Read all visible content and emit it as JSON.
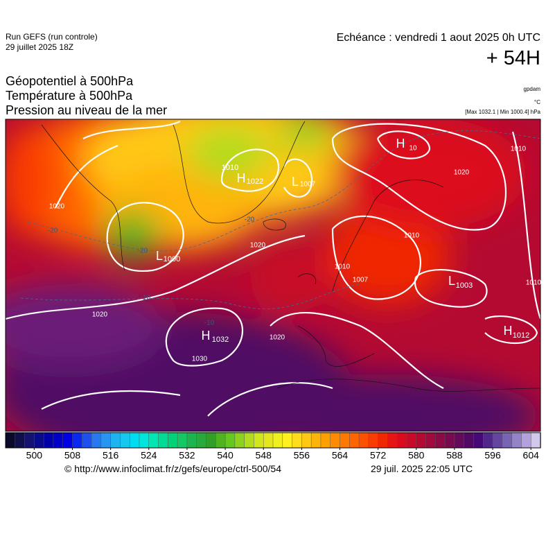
{
  "header": {
    "run": "Run GEFS (run controle)",
    "run_date": "29 juillet 2025 18Z",
    "valid": "Echéance : vendredi 1 aout 2025 0h UTC",
    "lead": "+ 54H",
    "fields": [
      "Géopotentiel à 500hPa",
      "Température à 500hPa",
      "Pression au niveau de la mer"
    ],
    "units": [
      "gpdam",
      "°C",
      "[Max 1032.1 | Min 1000.4] hPa"
    ]
  },
  "map": {
    "labels": [
      "1010",
      "H",
      "1022",
      "L",
      "1007",
      "H",
      "10",
      "1010",
      "1020",
      "1020",
      "L",
      "1000",
      "-20",
      "-20",
      "1020",
      "1010",
      "1007",
      "L",
      "1003",
      "1010",
      "-10",
      "1020",
      "-10",
      "H",
      "1032",
      "1030",
      "1020",
      "1010",
      "H",
      "1012",
      "-20"
    ]
  },
  "colorbar": {
    "lim": [
      494,
      606
    ],
    "step": 2,
    "ticks": [
      500,
      508,
      516,
      524,
      532,
      540,
      548,
      556,
      564,
      572,
      580,
      588,
      596,
      604
    ],
    "colors": [
      "#0a0a2a",
      "#10104a",
      "#141470",
      "#0a0a8c",
      "#0000a8",
      "#0000c8",
      "#0000e6",
      "#0a28f0",
      "#1e50f0",
      "#2878f0",
      "#2896f0",
      "#1eb4f0",
      "#14c8f0",
      "#00dcf0",
      "#00e6dc",
      "#00e6b4",
      "#00dc96",
      "#00d278",
      "#14c864",
      "#1eb450",
      "#28aa3c",
      "#32a028",
      "#50b41e",
      "#64c81e",
      "#8cd21e",
      "#b4dc1e",
      "#d2e61e",
      "#e6e61e",
      "#f0f01e",
      "#fff01e",
      "#ffdc1e",
      "#ffc814",
      "#ffb40a",
      "#ffa000",
      "#ff8c00",
      "#ff7800",
      "#ff6400",
      "#ff5000",
      "#fa3c00",
      "#f02800",
      "#e61414",
      "#dc0a1e",
      "#c80a28",
      "#b40a32",
      "#a00a3c",
      "#8c0a46",
      "#780a50",
      "#640a5a",
      "#500a64",
      "#460a78",
      "#50288c",
      "#6446a0",
      "#7864b4",
      "#9682c8",
      "#b4a0dc",
      "#d2c8eb"
    ]
  },
  "footer": {
    "credit": "© http://www.infoclimat.fr/z/gefs/europe/ctrl-500/54",
    "generated": "29 juil. 2025 22:05 UTC"
  }
}
